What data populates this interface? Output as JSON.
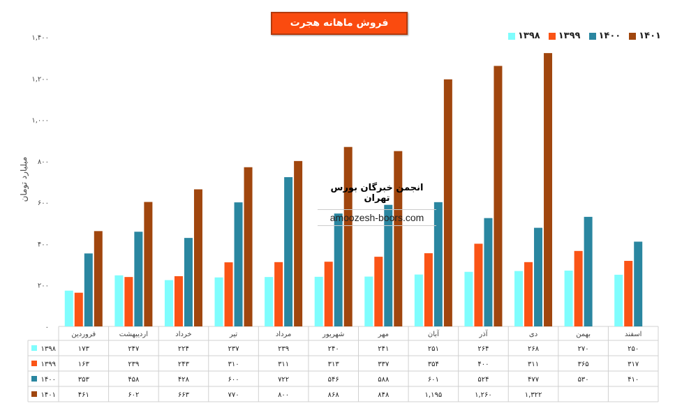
{
  "chart_data": {
    "type": "bar",
    "title": "فروش ماهانه هجرت",
    "ylabel": "میلیارد تومان",
    "xlabel": "",
    "ylim": [
      0,
      1400
    ],
    "yticks": [
      "۰",
      "۲۰۰",
      "۴۰۰",
      "۶۰۰",
      "۸۰۰",
      "۱,۰۰۰",
      "۱,۲۰۰",
      "۱,۴۰۰"
    ],
    "grid": false,
    "legend_position": "top-right",
    "categories": [
      "فروردین",
      "اردیبهشت",
      "خرداد",
      "تیر",
      "مرداد",
      "شهریور",
      "مهر",
      "آبان",
      "آذر",
      "دی",
      "بهمن",
      "اسفند"
    ],
    "series": [
      {
        "name": "۱۳۹۸",
        "color": "#7ffdfd",
        "values": [
          173,
          247,
          224,
          237,
          239,
          240,
          241,
          251,
          264,
          268,
          270,
          250
        ],
        "labels": [
          "۱۷۳",
          "۲۴۷",
          "۲۲۴",
          "۲۳۷",
          "۲۳۹",
          "۲۴۰",
          "۲۴۱",
          "۲۵۱",
          "۲۶۴",
          "۲۶۸",
          "۲۷۰",
          "۲۵۰"
        ]
      },
      {
        "name": "۱۳۹۹",
        "color": "#fa5416",
        "values": [
          163,
          239,
          243,
          310,
          311,
          313,
          337,
          354,
          400,
          311,
          365,
          317
        ],
        "labels": [
          "۱۶۳",
          "۲۳۹",
          "۲۴۳",
          "۳۱۰",
          "۳۱۱",
          "۳۱۳",
          "۳۳۷",
          "۳۵۴",
          "۴۰۰",
          "۳۱۱",
          "۳۶۵",
          "۳۱۷"
        ]
      },
      {
        "name": "۱۴۰۰",
        "color": "#2a86a0",
        "values": [
          353,
          458,
          428,
          600,
          722,
          546,
          588,
          601,
          524,
          477,
          530,
          410
        ],
        "labels": [
          "۳۵۳",
          "۴۵۸",
          "۴۲۸",
          "۶۰۰",
          "۷۲۲",
          "۵۴۶",
          "۵۸۸",
          "۶۰۱",
          "۵۲۴",
          "۴۷۷",
          "۵۳۰",
          "۴۱۰"
        ]
      },
      {
        "name": "۱۴۰۱",
        "color": "#a0460e",
        "values": [
          461,
          602,
          663,
          770,
          800,
          868,
          848,
          1195,
          1260,
          1322,
          null,
          null
        ],
        "labels": [
          "۴۶۱",
          "۶۰۲",
          "۶۶۳",
          "۷۷۰",
          "۸۰۰",
          "۸۶۸",
          "۸۴۸",
          "۱,۱۹۵",
          "۱,۲۶۰",
          "۱,۳۲۲",
          "",
          ""
        ]
      }
    ]
  },
  "watermark": {
    "title": "انجمن خبرگان بورس تهران",
    "url": "amoozesh-boors.com"
  }
}
